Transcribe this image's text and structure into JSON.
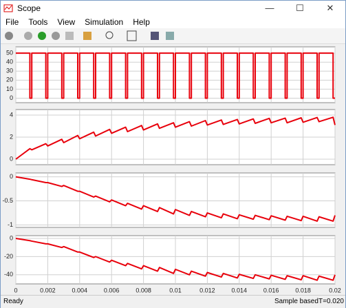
{
  "window": {
    "title": "Scope"
  },
  "menu": [
    "File",
    "Tools",
    "View",
    "Simulation",
    "Help"
  ],
  "status": {
    "left": "Ready",
    "mode": "Sample based",
    "time": "T=0.020"
  },
  "chart_data": [
    {
      "type": "line",
      "color": "#e8000b",
      "grid": true,
      "x": [
        0,
        0.00088,
        0.00088,
        0.001,
        0.001,
        0.00188,
        0.00188,
        0.002,
        0.002,
        0.00288,
        0.00288,
        0.003,
        0.003,
        0.00388,
        0.00388,
        0.004,
        0.004,
        0.00488,
        0.00488,
        0.005,
        0.005,
        0.00588,
        0.00588,
        0.006,
        0.006,
        0.00688,
        0.00688,
        0.007,
        0.007,
        0.00788,
        0.00788,
        0.008,
        0.008,
        0.00888,
        0.00888,
        0.009,
        0.009,
        0.00988,
        0.00988,
        0.01,
        0.01,
        0.01088,
        0.01088,
        0.011,
        0.011,
        0.01188,
        0.01188,
        0.012,
        0.012,
        0.01288,
        0.01288,
        0.013,
        0.013,
        0.01388,
        0.01388,
        0.014,
        0.014,
        0.01488,
        0.01488,
        0.015,
        0.015,
        0.01588,
        0.01588,
        0.016,
        0.016,
        0.01688,
        0.01688,
        0.017,
        0.017,
        0.01788,
        0.01788,
        0.018,
        0.018,
        0.01888,
        0.01888,
        0.019,
        0.019,
        0.01988,
        0.01988,
        0.02
      ],
      "values": [
        50,
        50,
        0,
        0,
        50,
        50,
        0,
        0,
        50,
        50,
        0,
        0,
        50,
        50,
        0,
        0,
        50,
        50,
        0,
        0,
        50,
        50,
        0,
        0,
        50,
        50,
        0,
        0,
        50,
        50,
        0,
        0,
        50,
        50,
        0,
        0,
        50,
        50,
        0,
        0,
        50,
        50,
        0,
        0,
        50,
        50,
        0,
        0,
        50,
        50,
        0,
        0,
        50,
        50,
        0,
        0,
        50,
        50,
        0,
        0,
        50,
        50,
        0,
        0,
        50,
        50,
        0,
        0,
        50,
        50,
        0,
        0,
        50,
        50,
        0,
        0,
        50,
        50,
        0,
        0
      ],
      "xlim": [
        0,
        0.02
      ],
      "xticks": [
        0,
        0.002,
        0.004,
        0.006,
        0.008,
        0.01,
        0.012,
        0.014,
        0.016,
        0.018,
        0.02
      ],
      "ylim": [
        -5,
        57
      ],
      "yticks": [
        0,
        10,
        20,
        30,
        40,
        50
      ]
    },
    {
      "type": "line",
      "color": "#e8000b",
      "grid": true,
      "x": [
        0,
        0.00088,
        0.001,
        0.00188,
        0.002,
        0.00288,
        0.003,
        0.00388,
        0.004,
        0.00488,
        0.005,
        0.00588,
        0.006,
        0.00688,
        0.007,
        0.00788,
        0.008,
        0.00888,
        0.009,
        0.00988,
        0.01,
        0.01088,
        0.011,
        0.01188,
        0.012,
        0.01288,
        0.013,
        0.01388,
        0.014,
        0.01488,
        0.015,
        0.01588,
        0.016,
        0.01688,
        0.017,
        0.01788,
        0.018,
        0.01888,
        0.019,
        0.01988,
        0.02
      ],
      "values": [
        0,
        0.95,
        0.85,
        1.4,
        1.2,
        1.8,
        1.5,
        2.15,
        1.85,
        2.45,
        2.1,
        2.7,
        2.35,
        2.9,
        2.5,
        3.05,
        2.65,
        3.2,
        2.8,
        3.3,
        2.9,
        3.4,
        3.0,
        3.5,
        3.1,
        3.55,
        3.15,
        3.6,
        3.2,
        3.65,
        3.25,
        3.7,
        3.3,
        3.72,
        3.3,
        3.75,
        3.35,
        3.78,
        3.4,
        3.8,
        3.1
      ],
      "xlim": [
        0,
        0.02
      ],
      "xticks": [
        0,
        0.002,
        0.004,
        0.006,
        0.008,
        0.01,
        0.012,
        0.014,
        0.016,
        0.018,
        0.02
      ],
      "ylim": [
        -0.5,
        4.5
      ],
      "yticks": [
        0,
        2,
        4
      ]
    },
    {
      "type": "line",
      "color": "#e8000b",
      "grid": true,
      "x": [
        0,
        0.00088,
        0.001,
        0.00188,
        0.002,
        0.00288,
        0.003,
        0.00388,
        0.004,
        0.00488,
        0.005,
        0.00588,
        0.006,
        0.00688,
        0.007,
        0.00788,
        0.008,
        0.00888,
        0.009,
        0.00988,
        0.01,
        0.01088,
        0.011,
        0.01188,
        0.012,
        0.01288,
        0.013,
        0.01388,
        0.014,
        0.01488,
        0.015,
        0.01588,
        0.016,
        0.01688,
        0.017,
        0.01788,
        0.018,
        0.01888,
        0.019,
        0.01988,
        0.02
      ],
      "values": [
        0,
        -0.05,
        -0.06,
        -0.12,
        -0.12,
        -0.2,
        -0.18,
        -0.3,
        -0.3,
        -0.42,
        -0.4,
        -0.52,
        -0.48,
        -0.6,
        -0.55,
        -0.67,
        -0.6,
        -0.72,
        -0.64,
        -0.77,
        -0.68,
        -0.8,
        -0.72,
        -0.83,
        -0.75,
        -0.85,
        -0.77,
        -0.87,
        -0.79,
        -0.88,
        -0.8,
        -0.89,
        -0.81,
        -0.9,
        -0.82,
        -0.91,
        -0.82,
        -0.92,
        -0.83,
        -0.92,
        -0.8
      ],
      "xlim": [
        0,
        0.02
      ],
      "xticks": [
        0,
        0.002,
        0.004,
        0.006,
        0.008,
        0.01,
        0.012,
        0.014,
        0.016,
        0.018,
        0.02
      ],
      "ylim": [
        -1.05,
        0.08
      ],
      "yticks": [
        0,
        -0.5,
        -1
      ]
    },
    {
      "type": "line",
      "color": "#e8000b",
      "grid": true,
      "x": [
        0,
        0.00088,
        0.001,
        0.00188,
        0.002,
        0.00288,
        0.003,
        0.00388,
        0.004,
        0.00488,
        0.005,
        0.00588,
        0.006,
        0.00688,
        0.007,
        0.00788,
        0.008,
        0.00888,
        0.009,
        0.00988,
        0.01,
        0.01088,
        0.011,
        0.01188,
        0.012,
        0.01288,
        0.013,
        0.01388,
        0.014,
        0.01488,
        0.015,
        0.01588,
        0.016,
        0.01688,
        0.017,
        0.01788,
        0.018,
        0.01888,
        0.019,
        0.01988,
        0.02
      ],
      "values": [
        0,
        -2.5,
        -3,
        -6,
        -6,
        -10,
        -9,
        -15,
        -15,
        -21,
        -20,
        -26,
        -24,
        -30,
        -27.5,
        -33.5,
        -30,
        -36,
        -32,
        -38.5,
        -34,
        -40,
        -36,
        -41.5,
        -37.5,
        -42.5,
        -38.5,
        -43.5,
        -39.5,
        -44,
        -40,
        -44.5,
        -40.5,
        -45,
        -41,
        -45.5,
        -41,
        -46,
        -41.5,
        -46,
        -40
      ],
      "xlim": [
        0,
        0.02
      ],
      "xticks": [
        0,
        0.002,
        0.004,
        0.006,
        0.008,
        0.01,
        0.012,
        0.014,
        0.016,
        0.018,
        0.02
      ],
      "ylim": [
        -50,
        3
      ],
      "yticks": [
        0,
        -20,
        -40
      ]
    }
  ]
}
